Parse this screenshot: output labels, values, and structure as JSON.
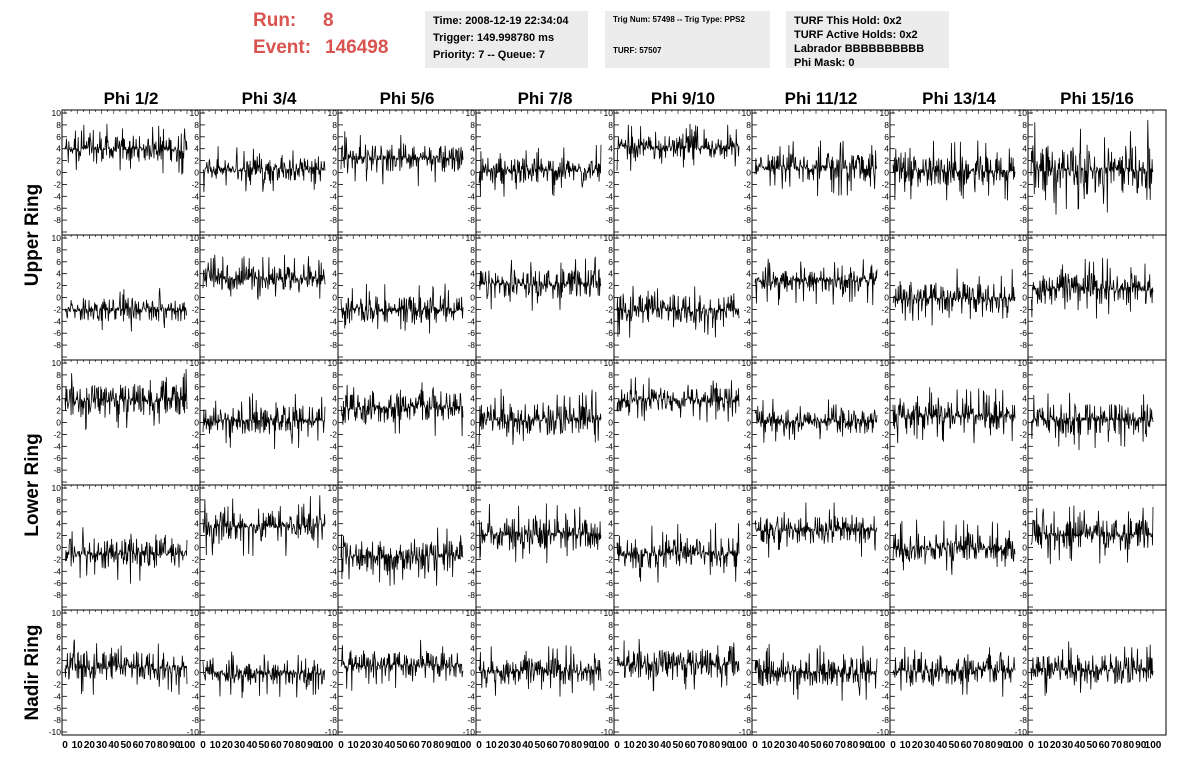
{
  "header": {
    "run_label": "Run:",
    "run_value": "8",
    "event_label": "Event:",
    "event_value": "146498",
    "time_line": "Time: 2008-12-19 22:34:04",
    "trigger_line": "Trigger: 149.998780 ms",
    "priority_line": "Priority: 7 -- Queue: 7",
    "trig_line": "Trig Num: 57498 -- Trig Type: PPS2",
    "turf_line": "TURF: 57507",
    "turf_hold_line": "TURF This Hold: 0x2",
    "turf_active_line": "TURF Active Holds: 0x2",
    "labrador_line": "Labrador BBBBBBBBBB",
    "phimask_line": "Phi Mask: 0"
  },
  "colors": {
    "header_text": "#d9534f",
    "box_bg": "#ececec",
    "trace": "#000000"
  },
  "chart_data": {
    "type": "line",
    "columns": [
      "Phi 1/2",
      "Phi 3/4",
      "Phi 5/6",
      "Phi 7/8",
      "Phi 9/10",
      "Phi 11/12",
      "Phi 13/14",
      "Phi 15/16"
    ],
    "rings": [
      "Upper Ring",
      "Lower Ring",
      "Nadir Ring"
    ],
    "rows_per_ring": [
      2,
      2,
      1
    ],
    "x_range": [
      0,
      100
    ],
    "x_ticks": [
      "0",
      "10",
      "20",
      "30",
      "40",
      "50",
      "60",
      "70",
      "80",
      "90",
      "100"
    ],
    "y_range": [
      -10,
      10
    ],
    "y_ticks": [
      "10",
      "8",
      "6",
      "4",
      "2",
      "0",
      "-2",
      "-4",
      "-6",
      "-8",
      "-10"
    ],
    "n_samples": 260,
    "panels": [
      [
        {
          "base": 4,
          "amp": 2.2
        },
        {
          "base": 0.5,
          "amp": 2.0
        },
        {
          "base": 2.5,
          "amp": 2.4
        },
        {
          "base": 0.3,
          "amp": 2.2
        },
        {
          "base": 4.2,
          "amp": 2.0
        },
        {
          "base": 0.8,
          "amp": 2.4
        },
        {
          "base": 0.2,
          "amp": 2.6
        },
        {
          "base": 0.5,
          "amp": 4.2
        }
      ],
      [
        {
          "base": -2,
          "amp": 2.0
        },
        {
          "base": 3.2,
          "amp": 2.0
        },
        {
          "base": -2,
          "amp": 2.2
        },
        {
          "base": 2.3,
          "amp": 2.4
        },
        {
          "base": -2,
          "amp": 2.4
        },
        {
          "base": 3.0,
          "amp": 2.2
        },
        {
          "base": -0.2,
          "amp": 2.6
        },
        {
          "base": 1.5,
          "amp": 2.6
        }
      ],
      [
        {
          "base": 3.8,
          "amp": 2.6
        },
        {
          "base": 0.3,
          "amp": 2.4
        },
        {
          "base": 2.5,
          "amp": 2.6
        },
        {
          "base": 0.5,
          "amp": 2.6
        },
        {
          "base": 3.8,
          "amp": 2.0
        },
        {
          "base": 0.2,
          "amp": 2.0
        },
        {
          "base": 1.2,
          "amp": 2.4
        },
        {
          "base": 0.5,
          "amp": 2.6
        }
      ],
      [
        {
          "base": -1,
          "amp": 2.6
        },
        {
          "base": 3.6,
          "amp": 2.6
        },
        {
          "base": -1.5,
          "amp": 2.6
        },
        {
          "base": 2.3,
          "amp": 2.6
        },
        {
          "base": -1.0,
          "amp": 2.6
        },
        {
          "base": 3.0,
          "amp": 2.4
        },
        {
          "base": 0.0,
          "amp": 2.4
        },
        {
          "base": 2.2,
          "amp": 2.6
        }
      ],
      [
        {
          "base": 1.0,
          "amp": 2.4
        },
        {
          "base": 0.0,
          "amp": 2.2
        },
        {
          "base": 1.2,
          "amp": 2.2
        },
        {
          "base": 0.2,
          "amp": 2.2
        },
        {
          "base": 1.5,
          "amp": 2.4
        },
        {
          "base": 0.0,
          "amp": 2.4
        },
        {
          "base": 0.3,
          "amp": 2.4
        },
        {
          "base": 0.5,
          "amp": 2.4
        }
      ]
    ]
  }
}
